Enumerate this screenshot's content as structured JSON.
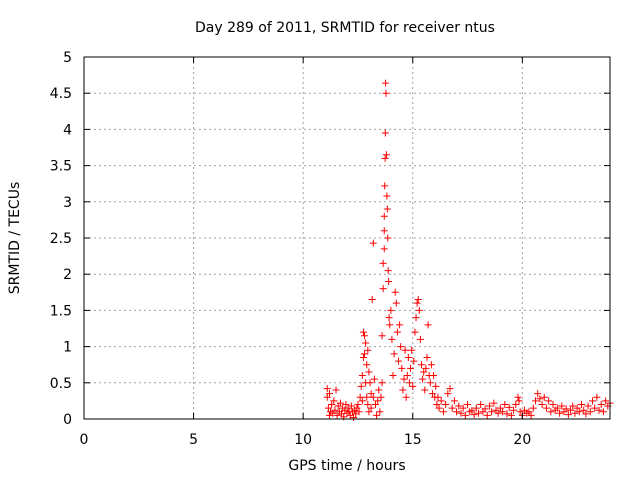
{
  "chart_data": {
    "type": "scatter",
    "title": "Day 289 of 2011, SRMTID for receiver ntus",
    "xlabel": "GPS time / hours",
    "ylabel": "SRMTID / TECUs",
    "xlim": [
      0,
      24
    ],
    "ylim": [
      0,
      5
    ],
    "xticks": [
      0,
      5,
      10,
      15,
      20
    ],
    "xtick_labels": [
      "0",
      "5",
      "10",
      "15",
      "20"
    ],
    "yticks": [
      0,
      0.5,
      1,
      1.5,
      2,
      2.5,
      3,
      3.5,
      4,
      4.5,
      5
    ],
    "ytick_labels": [
      "0",
      "0.5",
      "1",
      "1.5",
      "2",
      "2.5",
      "3",
      "3.5",
      "4",
      "4.5",
      "5"
    ],
    "grid": true,
    "marker": "+",
    "series": [
      {
        "name": "SRMTID",
        "color": "#ff0000",
        "points": [
          [
            11.1,
            0.42
          ],
          [
            11.1,
            0.3
          ],
          [
            11.15,
            0.15
          ],
          [
            11.2,
            0.05
          ],
          [
            11.2,
            0.35
          ],
          [
            11.25,
            0.1
          ],
          [
            11.3,
            0.2
          ],
          [
            11.35,
            0.08
          ],
          [
            11.4,
            0.25
          ],
          [
            11.45,
            0.12
          ],
          [
            11.5,
            0.4
          ],
          [
            11.55,
            0.05
          ],
          [
            11.6,
            0.18
          ],
          [
            11.65,
            0.1
          ],
          [
            11.7,
            0.22
          ],
          [
            11.75,
            0.07
          ],
          [
            11.8,
            0.15
          ],
          [
            11.85,
            0.03
          ],
          [
            11.9,
            0.12
          ],
          [
            11.95,
            0.2
          ],
          [
            12.0,
            0.08
          ],
          [
            12.05,
            0.15
          ],
          [
            12.1,
            0.1
          ],
          [
            12.15,
            0.05
          ],
          [
            12.2,
            0.18
          ],
          [
            12.25,
            0.1
          ],
          [
            12.3,
            0.02
          ],
          [
            12.35,
            0.12
          ],
          [
            12.4,
            0.07
          ],
          [
            12.45,
            0.15
          ],
          [
            12.5,
            0.2
          ],
          [
            12.55,
            0.1
          ],
          [
            12.6,
            0.3
          ],
          [
            12.65,
            0.45
          ],
          [
            12.7,
            0.6
          ],
          [
            12.7,
            0.25
          ],
          [
            12.75,
            0.85
          ],
          [
            12.75,
            1.2
          ],
          [
            12.8,
            1.15
          ],
          [
            12.8,
            0.9
          ],
          [
            12.85,
            1.05
          ],
          [
            12.85,
            0.5
          ],
          [
            12.9,
            0.75
          ],
          [
            12.9,
            0.3
          ],
          [
            12.95,
            0.95
          ],
          [
            12.95,
            0.2
          ],
          [
            13.0,
            0.65
          ],
          [
            13.0,
            0.1
          ],
          [
            13.05,
            0.5
          ],
          [
            13.1,
            0.35
          ],
          [
            13.1,
            0.15
          ],
          [
            13.15,
            1.65
          ],
          [
            13.2,
            2.43
          ],
          [
            13.2,
            0.3
          ],
          [
            13.25,
            0.55
          ],
          [
            13.3,
            0.2
          ],
          [
            13.35,
            0.05
          ],
          [
            13.4,
            0.25
          ],
          [
            13.45,
            0.4
          ],
          [
            13.5,
            0.1
          ],
          [
            13.55,
            0.3
          ],
          [
            13.6,
            0.5
          ],
          [
            13.6,
            1.15
          ],
          [
            13.65,
            1.8
          ],
          [
            13.65,
            2.15
          ],
          [
            13.7,
            2.35
          ],
          [
            13.7,
            2.6
          ],
          [
            13.7,
            2.8
          ],
          [
            13.72,
            3.22
          ],
          [
            13.74,
            3.6
          ],
          [
            13.75,
            3.95
          ],
          [
            13.76,
            4.64
          ],
          [
            13.78,
            4.5
          ],
          [
            13.8,
            3.65
          ],
          [
            13.82,
            3.08
          ],
          [
            13.84,
            2.9
          ],
          [
            13.86,
            2.5
          ],
          [
            13.88,
            2.05
          ],
          [
            13.9,
            1.9
          ],
          [
            13.92,
            1.4
          ],
          [
            13.95,
            1.3
          ],
          [
            14.0,
            1.5
          ],
          [
            14.05,
            1.1
          ],
          [
            14.1,
            0.6
          ],
          [
            14.15,
            0.9
          ],
          [
            14.2,
            1.75
          ],
          [
            14.25,
            1.6
          ],
          [
            14.3,
            1.2
          ],
          [
            14.35,
            0.8
          ],
          [
            14.4,
            1.3
          ],
          [
            14.45,
            1.0
          ],
          [
            14.5,
            0.7
          ],
          [
            14.55,
            0.4
          ],
          [
            14.6,
            0.55
          ],
          [
            14.65,
            0.95
          ],
          [
            14.7,
            0.3
          ],
          [
            14.75,
            0.6
          ],
          [
            14.8,
            0.85
          ],
          [
            14.85,
            0.5
          ],
          [
            14.9,
            0.7
          ],
          [
            14.95,
            0.95
          ],
          [
            15.0,
            0.45
          ],
          [
            15.05,
            0.8
          ],
          [
            15.1,
            1.2
          ],
          [
            15.15,
            1.4
          ],
          [
            15.2,
            1.6
          ],
          [
            15.25,
            1.65
          ],
          [
            15.3,
            1.5
          ],
          [
            15.35,
            1.1
          ],
          [
            15.4,
            0.75
          ],
          [
            15.45,
            0.55
          ],
          [
            15.5,
            0.65
          ],
          [
            15.55,
            0.4
          ],
          [
            15.6,
            0.7
          ],
          [
            15.65,
            0.85
          ],
          [
            15.7,
            1.3
          ],
          [
            15.75,
            0.6
          ],
          [
            15.8,
            0.5
          ],
          [
            15.85,
            0.75
          ],
          [
            15.9,
            0.35
          ],
          [
            15.95,
            0.6
          ],
          [
            16.0,
            0.3
          ],
          [
            16.05,
            0.45
          ],
          [
            16.1,
            0.2
          ],
          [
            16.15,
            0.3
          ],
          [
            16.2,
            0.15
          ],
          [
            16.3,
            0.25
          ],
          [
            16.4,
            0.1
          ],
          [
            16.5,
            0.2
          ],
          [
            16.6,
            0.35
          ],
          [
            16.7,
            0.42
          ],
          [
            16.8,
            0.15
          ],
          [
            16.9,
            0.25
          ],
          [
            17.0,
            0.1
          ],
          [
            17.1,
            0.18
          ],
          [
            17.2,
            0.08
          ],
          [
            17.3,
            0.15
          ],
          [
            17.4,
            0.05
          ],
          [
            17.5,
            0.2
          ],
          [
            17.6,
            0.1
          ],
          [
            17.7,
            0.12
          ],
          [
            17.8,
            0.06
          ],
          [
            17.9,
            0.15
          ],
          [
            18.0,
            0.08
          ],
          [
            18.1,
            0.2
          ],
          [
            18.2,
            0.1
          ],
          [
            18.3,
            0.14
          ],
          [
            18.4,
            0.05
          ],
          [
            18.5,
            0.18
          ],
          [
            18.6,
            0.1
          ],
          [
            18.7,
            0.22
          ],
          [
            18.8,
            0.12
          ],
          [
            18.9,
            0.08
          ],
          [
            19.0,
            0.15
          ],
          [
            19.1,
            0.1
          ],
          [
            19.2,
            0.2
          ],
          [
            19.3,
            0.07
          ],
          [
            19.4,
            0.16
          ],
          [
            19.5,
            0.05
          ],
          [
            19.6,
            0.12
          ],
          [
            19.7,
            0.2
          ],
          [
            19.8,
            0.3
          ],
          [
            19.85,
            0.25
          ],
          [
            19.9,
            0.1
          ],
          [
            20.0,
            0.05
          ],
          [
            20.1,
            0.12
          ],
          [
            20.2,
            0.08
          ],
          [
            20.3,
            0.1
          ],
          [
            20.4,
            0.05
          ],
          [
            20.5,
            0.15
          ],
          [
            20.6,
            0.25
          ],
          [
            20.7,
            0.35
          ],
          [
            20.8,
            0.28
          ],
          [
            20.9,
            0.2
          ],
          [
            21.0,
            0.3
          ],
          [
            21.1,
            0.15
          ],
          [
            21.2,
            0.25
          ],
          [
            21.3,
            0.1
          ],
          [
            21.4,
            0.2
          ],
          [
            21.5,
            0.12
          ],
          [
            21.6,
            0.15
          ],
          [
            21.7,
            0.08
          ],
          [
            21.8,
            0.18
          ],
          [
            21.9,
            0.1
          ],
          [
            22.0,
            0.14
          ],
          [
            22.1,
            0.06
          ],
          [
            22.2,
            0.12
          ],
          [
            22.3,
            0.18
          ],
          [
            22.4,
            0.08
          ],
          [
            22.5,
            0.15
          ],
          [
            22.6,
            0.1
          ],
          [
            22.7,
            0.2
          ],
          [
            22.8,
            0.12
          ],
          [
            22.9,
            0.07
          ],
          [
            23.0,
            0.18
          ],
          [
            23.1,
            0.1
          ],
          [
            23.2,
            0.25
          ],
          [
            23.3,
            0.15
          ],
          [
            23.4,
            0.3
          ],
          [
            23.5,
            0.12
          ],
          [
            23.6,
            0.2
          ],
          [
            23.7,
            0.1
          ],
          [
            23.8,
            0.25
          ],
          [
            23.9,
            0.18
          ],
          [
            24.0,
            0.22
          ]
        ]
      }
    ]
  }
}
